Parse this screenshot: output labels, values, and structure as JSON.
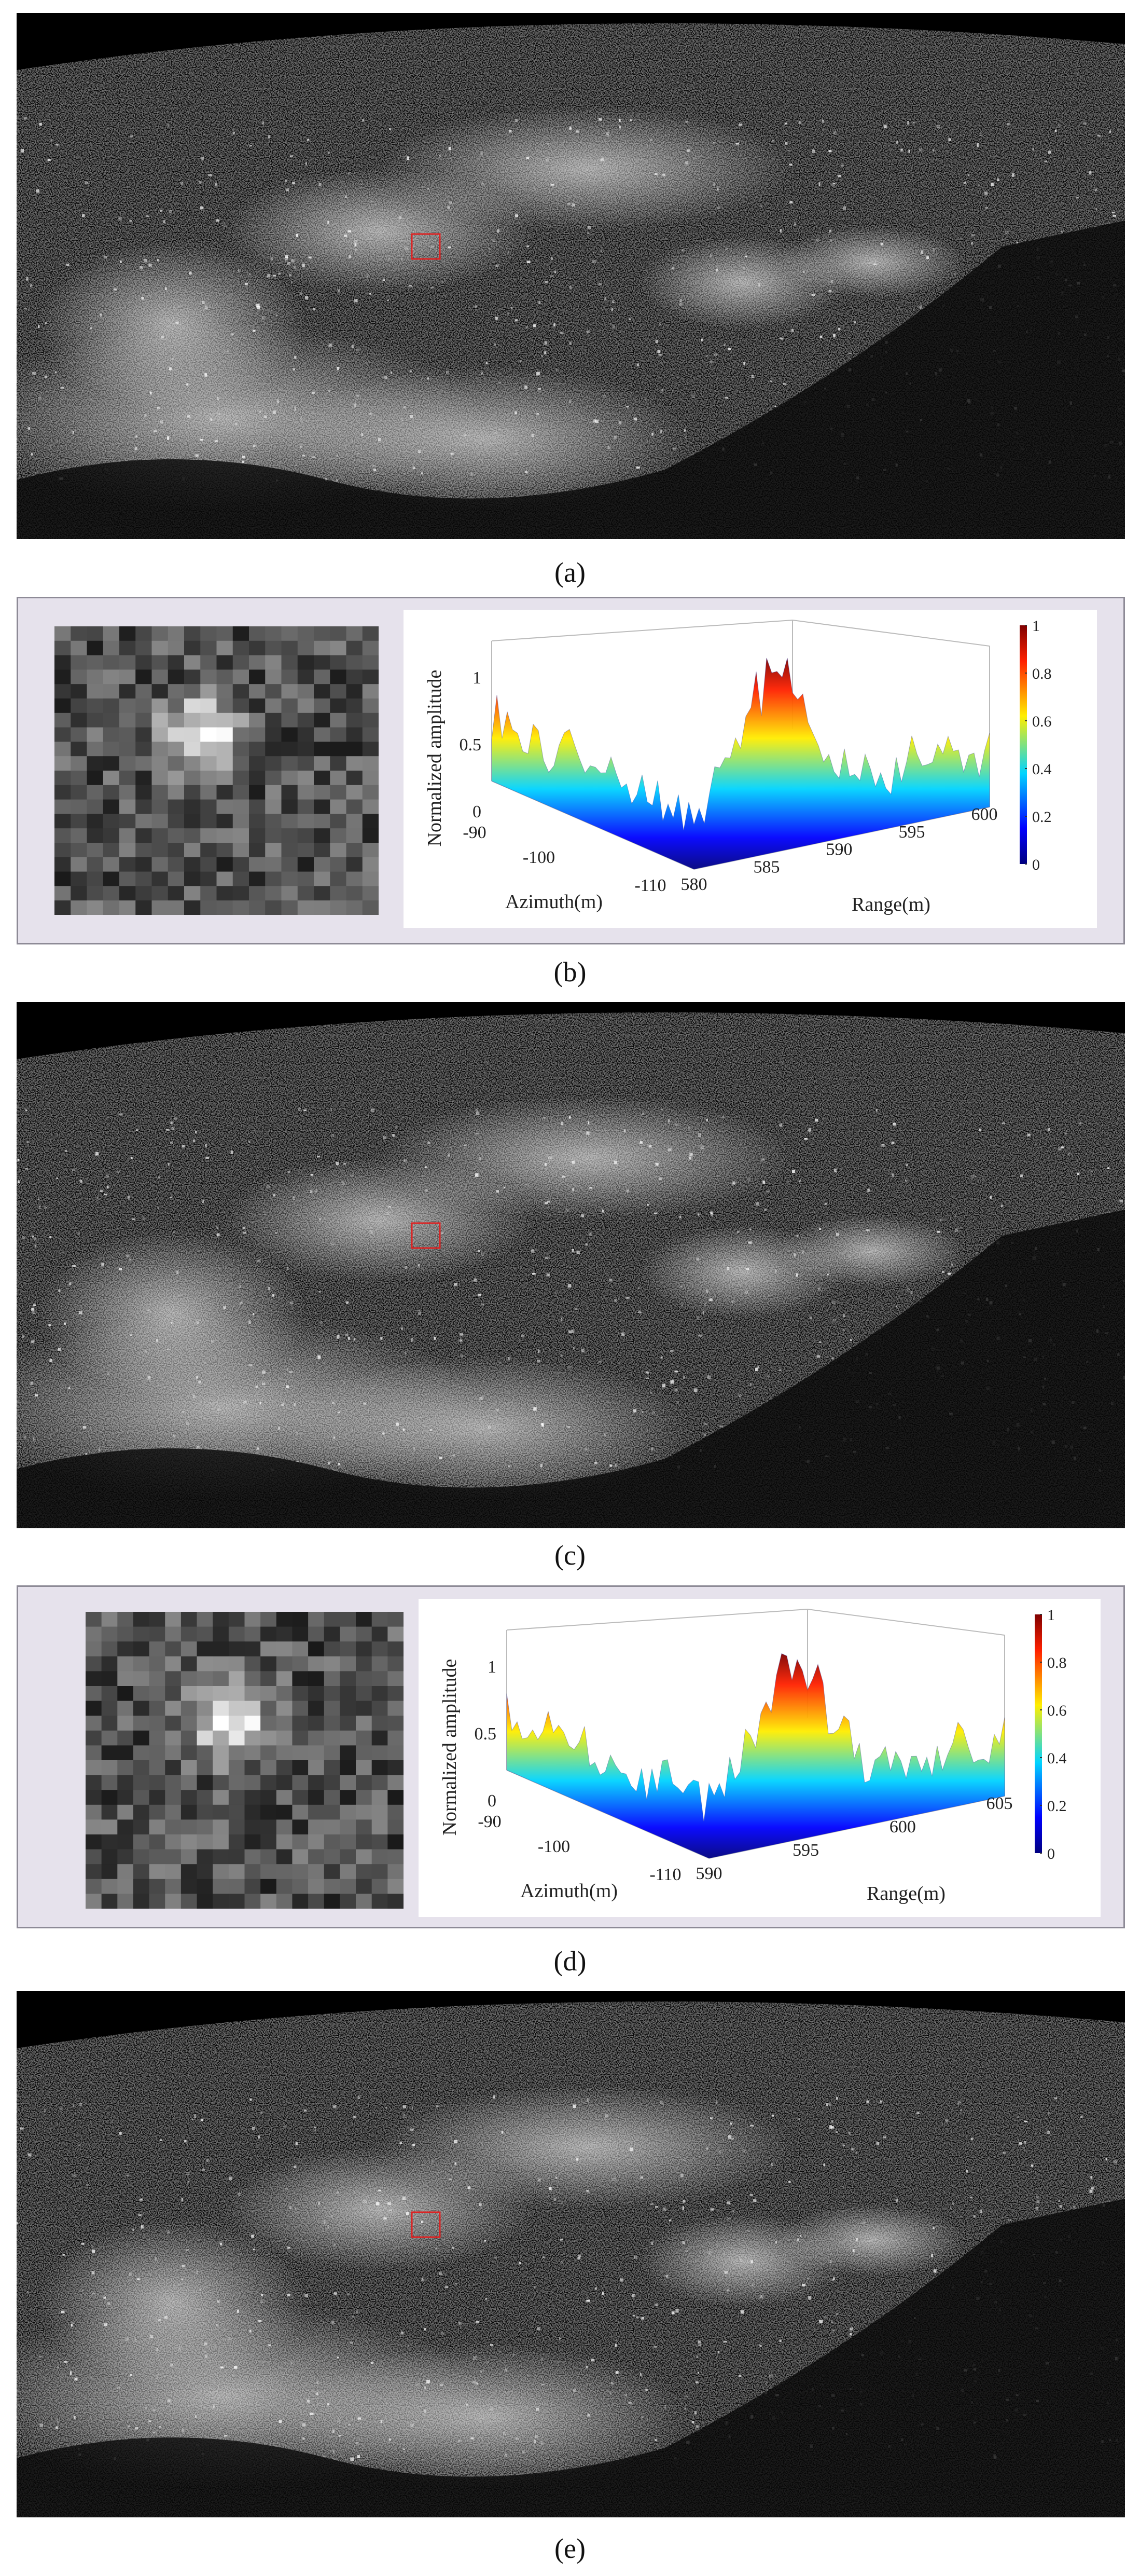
{
  "panels": [
    {
      "label": "(a)"
    },
    {
      "label": "(b)",
      "plot": {
        "zlabel": "Normalized amplitude",
        "zticks": [
          0,
          0.5,
          1
        ],
        "xlabel": "Azimuth(m)",
        "xticks": [
          -90,
          -100,
          -110
        ],
        "ylabel": "Range(m)",
        "yticks": [
          580,
          585,
          590,
          595,
          600
        ],
        "colorbar_ticks": [
          0,
          0.2,
          0.4,
          0.6,
          0.8,
          1
        ]
      }
    },
    {
      "label": "(c)"
    },
    {
      "label": "(d)",
      "plot": {
        "zlabel": "Normalized amplitude",
        "zticks": [
          0,
          0.5,
          1
        ],
        "xlabel": "Azimuth(m)",
        "xticks": [
          -90,
          -100,
          -110
        ],
        "ylabel": "Range(m)",
        "yticks": [
          590,
          595,
          600,
          605
        ],
        "colorbar_ticks": [
          0,
          0.2,
          0.4,
          0.6,
          0.8,
          1
        ]
      }
    },
    {
      "label": "(e)"
    }
  ]
}
